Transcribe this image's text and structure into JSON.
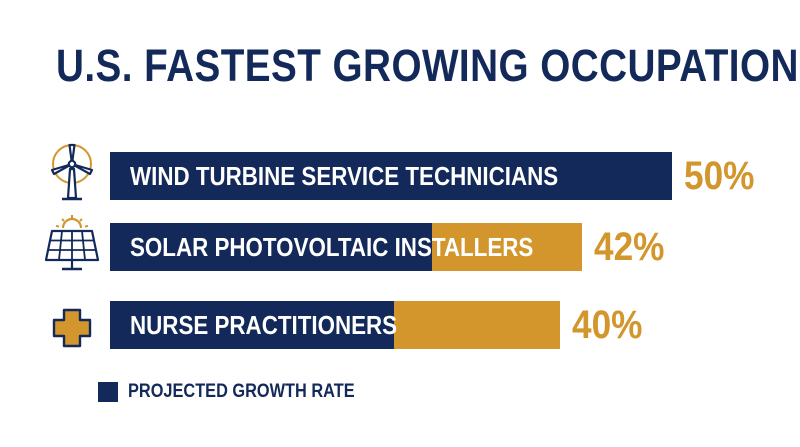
{
  "colors": {
    "navy": "#13295a",
    "gold": "#d2962c",
    "white": "#ffffff"
  },
  "chart_data": {
    "type": "bar",
    "orientation": "horizontal",
    "title": "U.S. FASTEST GROWING OCCUPATIONS",
    "categories": [
      "WIND TURBINE SERVICE TECHNICIANS",
      "SOLAR PHOTOVOLTAIC INSTALLERS",
      "NURSE PRACTITIONERS"
    ],
    "values": [
      50,
      42,
      40
    ],
    "value_labels": [
      "50%",
      "42%",
      "40%"
    ],
    "icons": [
      "wind-turbine-icon",
      "solar-panel-icon",
      "medical-cross-icon"
    ],
    "xlim": [
      0,
      50
    ],
    "grid": false,
    "legend": {
      "position": "bottom-left",
      "entries": [
        {
          "label": "PROJECTED GROWTH RATE",
          "color": "#13295a"
        }
      ]
    }
  }
}
